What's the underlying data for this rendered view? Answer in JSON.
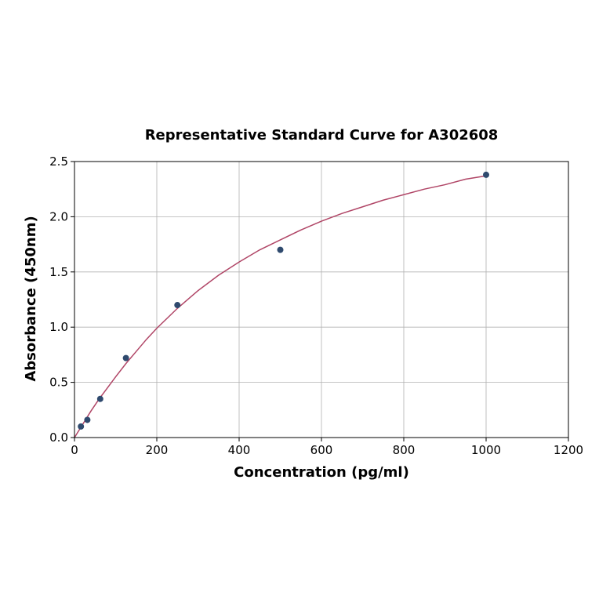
{
  "chart_data": {
    "type": "scatter",
    "title": "Representative Standard Curve for A302608",
    "xlabel": "Concentration (pg/ml)",
    "ylabel": "Absorbance (450nm)",
    "xlim": [
      0,
      1200
    ],
    "ylim": [
      0,
      2.5
    ],
    "x_ticks": [
      "0",
      "200",
      "400",
      "600",
      "800",
      "1000",
      "1200"
    ],
    "y_ticks": [
      "0.0",
      "0.5",
      "1.0",
      "1.5",
      "2.0",
      "2.5"
    ],
    "grid": true,
    "series": [
      {
        "points": [
          {
            "x": 15.6,
            "y": 0.1
          },
          {
            "x": 31.25,
            "y": 0.16
          },
          {
            "x": 62.5,
            "y": 0.35
          },
          {
            "x": 125,
            "y": 0.72
          },
          {
            "x": 250,
            "y": 1.2
          },
          {
            "x": 500,
            "y": 1.7
          },
          {
            "x": 1000,
            "y": 2.38
          }
        ]
      }
    ],
    "fit_curve": {
      "x": [
        0,
        20,
        40,
        60,
        80,
        100,
        125,
        150,
        175,
        200,
        250,
        300,
        350,
        400,
        450,
        500,
        550,
        600,
        650,
        700,
        750,
        800,
        850,
        900,
        950,
        1000
      ],
      "y": [
        0.0,
        0.12,
        0.24,
        0.35,
        0.45,
        0.55,
        0.67,
        0.78,
        0.89,
        0.99,
        1.17,
        1.33,
        1.47,
        1.59,
        1.7,
        1.79,
        1.88,
        1.96,
        2.03,
        2.09,
        2.15,
        2.2,
        2.25,
        2.29,
        2.34,
        2.37
      ]
    },
    "colors": {
      "point": "#2f4a6e",
      "curve": "#b04566",
      "grid": "#b0b0b0",
      "axes": "#000000"
    }
  }
}
